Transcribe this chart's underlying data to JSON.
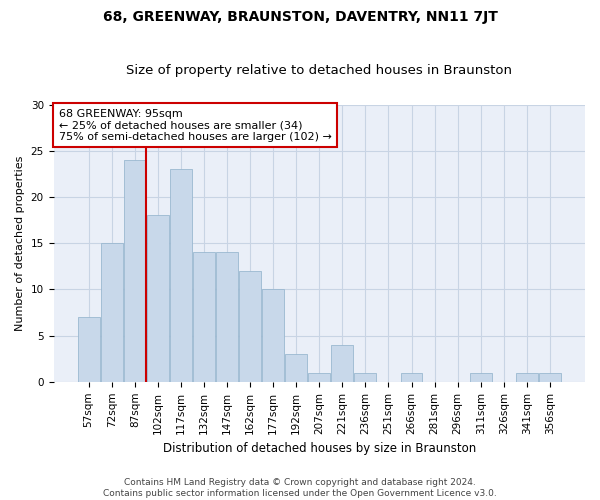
{
  "title": "68, GREENWAY, BRAUNSTON, DAVENTRY, NN11 7JT",
  "subtitle": "Size of property relative to detached houses in Braunston",
  "xlabel": "Distribution of detached houses by size in Braunston",
  "ylabel": "Number of detached properties",
  "categories": [
    "57sqm",
    "72sqm",
    "87sqm",
    "102sqm",
    "117sqm",
    "132sqm",
    "147sqm",
    "162sqm",
    "177sqm",
    "192sqm",
    "207sqm",
    "221sqm",
    "236sqm",
    "251sqm",
    "266sqm",
    "281sqm",
    "296sqm",
    "311sqm",
    "326sqm",
    "341sqm",
    "356sqm"
  ],
  "values": [
    7,
    15,
    24,
    18,
    23,
    14,
    14,
    12,
    10,
    3,
    1,
    4,
    1,
    0,
    1,
    0,
    0,
    1,
    0,
    1,
    1
  ],
  "bar_color": "#c8d8ea",
  "bar_edge_color": "#9ab8d0",
  "vline_x": 2.5,
  "vline_color": "#cc0000",
  "annotation_text": "68 GREENWAY: 95sqm\n← 25% of detached houses are smaller (34)\n75% of semi-detached houses are larger (102) →",
  "annotation_box_facecolor": "#ffffff",
  "annotation_box_edgecolor": "#cc0000",
  "ylim": [
    0,
    30
  ],
  "yticks": [
    0,
    5,
    10,
    15,
    20,
    25,
    30
  ],
  "grid_color": "#c8d4e4",
  "background_color": "#eaeff8",
  "footnote": "Contains HM Land Registry data © Crown copyright and database right 2024.\nContains public sector information licensed under the Open Government Licence v3.0.",
  "title_fontsize": 10,
  "subtitle_fontsize": 9.5,
  "xlabel_fontsize": 8.5,
  "ylabel_fontsize": 8,
  "tick_fontsize": 7.5,
  "annotation_fontsize": 8,
  "footnote_fontsize": 6.5
}
